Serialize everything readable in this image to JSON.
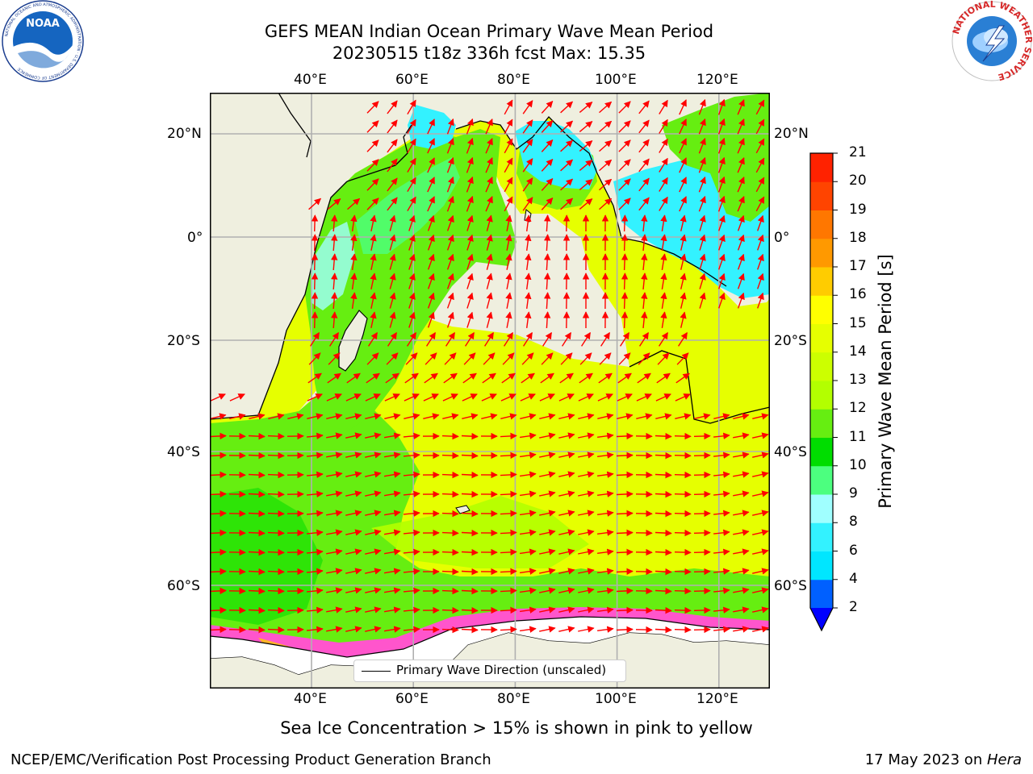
{
  "header": {
    "title_line1": "GEFS MEAN Indian Ocean Primary Wave Mean Period",
    "title_line2": "20230515 t18z 336h fcst   Max: 15.35"
  },
  "logos": {
    "left": {
      "text": "NOAA",
      "ring_text": "NATIONAL OCEANIC AND ATMOSPHERIC ADMINISTRATION · U.S. DEPARTMENT OF COMMERCE",
      "color": "#1565c0"
    },
    "right": {
      "ring_text": "NATIONAL WEATHER SERVICE",
      "color": "#d62828"
    }
  },
  "map": {
    "lon_ticks": [
      "40°E",
      "60°E",
      "80°E",
      "100°E",
      "120°E"
    ],
    "lon_values": [
      40,
      60,
      80,
      100,
      120
    ],
    "lat_ticks": [
      "20°N",
      "0°",
      "20°S",
      "40°S",
      "60°S"
    ],
    "lat_values": [
      20,
      0,
      -20,
      -40,
      -60
    ],
    "land_color": "#efefdf",
    "ice_free_color": "#ffffff",
    "arrow_color": "#ff0000",
    "legend_label": "Primary Wave Direction (unscaled)"
  },
  "colorbar": {
    "label": "Primary Wave Mean Period [s]",
    "ticks": [
      "2",
      "4",
      "6",
      "8",
      "9",
      "10",
      "11",
      "12",
      "13",
      "14",
      "15",
      "16",
      "17",
      "18",
      "19",
      "20",
      "21"
    ],
    "colors": [
      "#0060ff",
      "#00e6ff",
      "#33f2ff",
      "#a0ffff",
      "#4cff7f",
      "#00dd00",
      "#66ee11",
      "#b3ff00",
      "#ccff00",
      "#e6ff00",
      "#ffff00",
      "#ffcc00",
      "#ff9900",
      "#ff7700",
      "#ff4400",
      "#ff2200",
      "#ff0000"
    ],
    "under_color": "#0000ff"
  },
  "note": "Sea Ice Concentration > 15% is shown in pink to yellow",
  "footer": {
    "left": "NCEP/EMC/Verification Post Processing Product Generation Branch",
    "right_prefix": "17 May 2023 on ",
    "right_machine": "Hera"
  }
}
